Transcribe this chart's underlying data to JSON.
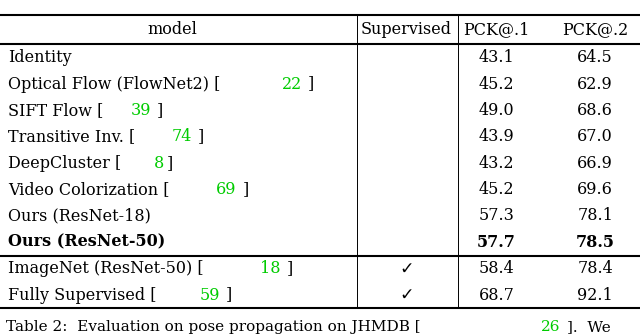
{
  "header": [
    "model",
    "Supervised",
    "PCK@.1",
    "PCK@.2"
  ],
  "rows": [
    {
      "model_parts": [
        {
          "text": "Identity",
          "color": "#000000"
        }
      ],
      "supervised": "",
      "pck1": "43.1",
      "pck2": "64.5",
      "bold": false
    },
    {
      "model_parts": [
        {
          "text": "Optical Flow (FlowNet2) [",
          "color": "#000000"
        },
        {
          "text": "22",
          "color": "#00cc00"
        },
        {
          "text": "]",
          "color": "#000000"
        }
      ],
      "supervised": "",
      "pck1": "45.2",
      "pck2": "62.9",
      "bold": false
    },
    {
      "model_parts": [
        {
          "text": "SIFT Flow [",
          "color": "#000000"
        },
        {
          "text": "39",
          "color": "#00cc00"
        },
        {
          "text": "]",
          "color": "#000000"
        }
      ],
      "supervised": "",
      "pck1": "49.0",
      "pck2": "68.6",
      "bold": false
    },
    {
      "model_parts": [
        {
          "text": "Transitive Inv. [",
          "color": "#000000"
        },
        {
          "text": "74",
          "color": "#00cc00"
        },
        {
          "text": "]",
          "color": "#000000"
        }
      ],
      "supervised": "",
      "pck1": "43.9",
      "pck2": "67.0",
      "bold": false
    },
    {
      "model_parts": [
        {
          "text": "DeepCluster [",
          "color": "#000000"
        },
        {
          "text": "8",
          "color": "#00cc00"
        },
        {
          "text": "]",
          "color": "#000000"
        }
      ],
      "supervised": "",
      "pck1": "43.2",
      "pck2": "66.9",
      "bold": false
    },
    {
      "model_parts": [
        {
          "text": "Video Colorization [",
          "color": "#000000"
        },
        {
          "text": "69",
          "color": "#00cc00"
        },
        {
          "text": "]",
          "color": "#000000"
        }
      ],
      "supervised": "",
      "pck1": "45.2",
      "pck2": "69.6",
      "bold": false
    },
    {
      "model_parts": [
        {
          "text": "Ours (ResNet-18)",
          "color": "#000000"
        }
      ],
      "supervised": "",
      "pck1": "57.3",
      "pck2": "78.1",
      "bold": false
    },
    {
      "model_parts": [
        {
          "text": "Ours (ResNet-50)",
          "color": "#000000"
        }
      ],
      "supervised": "",
      "pck1": "57.7",
      "pck2": "78.5",
      "bold": true
    }
  ],
  "rows_supervised": [
    {
      "model_parts": [
        {
          "text": "ImageNet (ResNet-50) [",
          "color": "#000000"
        },
        {
          "text": "18",
          "color": "#00cc00"
        },
        {
          "text": "]",
          "color": "#000000"
        }
      ],
      "supervised": "✓",
      "pck1": "58.4",
      "pck2": "78.4",
      "bold": false
    },
    {
      "model_parts": [
        {
          "text": "Fully Supervised [",
          "color": "#000000"
        },
        {
          "text": "59",
          "color": "#00cc00"
        },
        {
          "text": "]",
          "color": "#000000"
        }
      ],
      "supervised": "✓",
      "pck1": "68.7",
      "pck2": "92.1",
      "bold": false
    }
  ],
  "bg_color": "#ffffff",
  "text_color": "#000000",
  "green_color": "#00cc00",
  "font_size": 11.5,
  "caption_parts": [
    {
      "text": "Table 2:  Evaluation on pose propagation on JHMDB [",
      "color": "#000000"
    },
    {
      "text": "26",
      "color": "#00cc00"
    },
    {
      "text": "].  We",
      "color": "#000000"
    }
  ]
}
